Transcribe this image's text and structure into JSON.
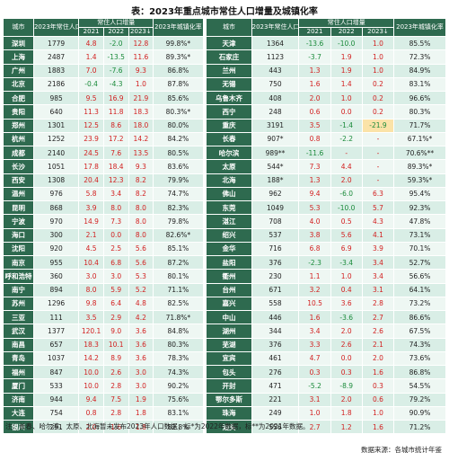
{
  "title": "表：2023年重点城市常住人口增量及城镇化率",
  "headers": {
    "city": "城市",
    "pop": "2023年常住人口（万人）",
    "inc": "常住人口增量",
    "y2021": "2021",
    "y2022": "2022",
    "y2023": "2023↓",
    "urban": "2023年城镇化率"
  },
  "left_rows": [
    {
      "city": "深圳",
      "pop": "1779",
      "a": "4.8",
      "b": "-2.0",
      "c": "12.8",
      "u": "99.8%*"
    },
    {
      "city": "上海",
      "pop": "2487",
      "a": "1.4",
      "b": "-13.5",
      "c": "11.6",
      "u": "89.3%*"
    },
    {
      "city": "广州",
      "pop": "1883",
      "a": "7.0",
      "b": "-7.6",
      "c": "9.3",
      "u": "86.8%"
    },
    {
      "city": "北京",
      "pop": "2186",
      "a": "-0.4",
      "b": "-4.3",
      "c": "1.0",
      "u": "87.8%"
    },
    {
      "city": "合肥",
      "pop": "985",
      "a": "9.5",
      "b": "16.9",
      "c": "21.9",
      "u": "85.6%"
    },
    {
      "city": "贵阳",
      "pop": "640",
      "a": "11.3",
      "b": "11.8",
      "c": "18.3",
      "u": "80.3%*"
    },
    {
      "city": "郑州",
      "pop": "1301",
      "a": "12.5",
      "b": "8.6",
      "c": "18.0",
      "u": "80.0%"
    },
    {
      "city": "杭州",
      "pop": "1252",
      "a": "23.9",
      "b": "17.2",
      "c": "14.2",
      "u": "84.2%"
    },
    {
      "city": "成都",
      "pop": "2140",
      "a": "24.5",
      "b": "7.6",
      "c": "13.5",
      "u": "80.5%"
    },
    {
      "city": "长沙",
      "pop": "1051",
      "a": "17.8",
      "b": "18.4",
      "c": "9.3",
      "u": "83.6%"
    },
    {
      "city": "西安",
      "pop": "1308",
      "a": "20.4",
      "b": "12.3",
      "c": "8.2",
      "u": "79.9%"
    },
    {
      "city": "温州",
      "pop": "976",
      "a": "5.8",
      "b": "3.4",
      "c": "8.2",
      "u": "74.7%"
    },
    {
      "city": "昆明",
      "pop": "868",
      "a": "3.9",
      "b": "8.0",
      "c": "8.0",
      "u": "82.3%"
    },
    {
      "city": "宁波",
      "pop": "970",
      "a": "14.9",
      "b": "7.3",
      "c": "8.0",
      "u": "79.8%"
    },
    {
      "city": "海口",
      "pop": "300",
      "a": "2.1",
      "b": "0.0",
      "c": "8.0",
      "u": "82.6%*"
    },
    {
      "city": "沈阳",
      "pop": "920",
      "a": "4.5",
      "b": "2.5",
      "c": "5.6",
      "u": "85.1%"
    },
    {
      "city": "南京",
      "pop": "955",
      "a": "10.4",
      "b": "6.8",
      "c": "5.6",
      "u": "87.2%"
    },
    {
      "city": "呼和浩特",
      "pop": "360",
      "a": "3.0",
      "b": "3.0",
      "c": "5.3",
      "u": "80.1%"
    },
    {
      "city": "南宁",
      "pop": "894",
      "a": "8.0",
      "b": "5.9",
      "c": "5.2",
      "u": "71.1%"
    },
    {
      "city": "苏州",
      "pop": "1296",
      "a": "9.8",
      "b": "6.4",
      "c": "4.8",
      "u": "82.5%"
    },
    {
      "city": "三亚",
      "pop": "111",
      "a": "3.5",
      "b": "2.9",
      "c": "4.2",
      "u": "71.8%*"
    },
    {
      "city": "武汉",
      "pop": "1377",
      "a": "120.1",
      "b": "9.0",
      "c": "3.6",
      "u": "84.8%"
    },
    {
      "city": "南昌",
      "pop": "657",
      "a": "18.3",
      "b": "10.1",
      "c": "3.6",
      "u": "80.3%"
    },
    {
      "city": "青岛",
      "pop": "1037",
      "a": "14.2",
      "b": "8.9",
      "c": "3.6",
      "u": "78.3%"
    },
    {
      "city": "福州",
      "pop": "847",
      "a": "10.0",
      "b": "2.6",
      "c": "3.0",
      "u": "74.3%"
    },
    {
      "city": "厦门",
      "pop": "533",
      "a": "10.0",
      "b": "2.8",
      "c": "3.0",
      "u": "90.2%"
    },
    {
      "city": "济南",
      "pop": "944",
      "a": "9.4",
      "b": "7.5",
      "c": "1.9",
      "u": "75.6%"
    },
    {
      "city": "大连",
      "pop": "754",
      "a": "0.8",
      "b": "2.8",
      "c": "1.8",
      "u": "83.1%"
    },
    {
      "city": "银川",
      "pop": "291",
      "a": "2.0",
      "b": "1.6",
      "c": "1.8",
      "u": "82.8%"
    }
  ],
  "right_rows": [
    {
      "city": "天津",
      "pop": "1364",
      "a": "-13.6",
      "b": "-10.0",
      "c": "1.0",
      "u": "85.5%"
    },
    {
      "city": "石家庄",
      "pop": "1123",
      "a": "-3.7",
      "b": "1.9",
      "c": "1.0",
      "u": "72.3%"
    },
    {
      "city": "兰州",
      "pop": "443",
      "a": "1.3",
      "b": "1.9",
      "c": "1.0",
      "u": "84.9%"
    },
    {
      "city": "无锡",
      "pop": "750",
      "a": "1.6",
      "b": "1.4",
      "c": "0.2",
      "u": "83.1%"
    },
    {
      "city": "乌鲁木齐",
      "pop": "408",
      "a": "2.0",
      "b": "1.0",
      "c": "0.2",
      "u": "96.6%"
    },
    {
      "city": "西宁",
      "pop": "248",
      "a": "0.6",
      "b": "0.0",
      "c": "0.2",
      "u": "80.3%"
    },
    {
      "city": "重庆",
      "pop": "3191",
      "a": "3.5",
      "b": "-1.4",
      "c": "-21.9",
      "u": "71.7%"
    },
    {
      "city": "长春",
      "pop": "907*",
      "a": "0.8",
      "b": "-2.2",
      "c": "-",
      "u": "67.1%*"
    },
    {
      "city": "哈尔滨",
      "pop": "989**",
      "a": "-11.6",
      "c": "-",
      "b": "-",
      "u": "70.6%**"
    },
    {
      "city": "太原",
      "pop": "544*",
      "a": "7.3",
      "b": "4.4",
      "c": "-",
      "u": "89.3%*"
    },
    {
      "city": "北海",
      "pop": "188*",
      "a": "1.3",
      "b": "2.0",
      "c": "-",
      "u": "59.3%*"
    },
    {
      "city": "佛山",
      "pop": "962",
      "a": "9.4",
      "b": "-6.0",
      "c": "6.3",
      "u": "95.4%"
    },
    {
      "city": "东莞",
      "pop": "1049",
      "a": "5.3",
      "b": "-10.0",
      "c": "5.7",
      "u": "92.3%"
    },
    {
      "city": "湛江",
      "pop": "708",
      "a": "4.0",
      "b": "0.5",
      "c": "4.3",
      "u": "47.8%"
    },
    {
      "city": "绍兴",
      "pop": "537",
      "a": "3.8",
      "b": "5.6",
      "c": "4.1",
      "u": "73.1%"
    },
    {
      "city": "金华",
      "pop": "716",
      "a": "6.8",
      "b": "6.9",
      "c": "3.9",
      "u": "70.1%"
    },
    {
      "city": "盐阳",
      "pop": "376",
      "a": "-2.3",
      "b": "-3.4",
      "c": "3.4",
      "u": "52.7%"
    },
    {
      "city": "衢州",
      "pop": "230",
      "a": "1.1",
      "b": "1.0",
      "c": "3.4",
      "u": "56.6%"
    },
    {
      "city": "台州",
      "pop": "671",
      "a": "3.2",
      "b": "0.4",
      "c": "3.1",
      "u": "64.1%"
    },
    {
      "city": "嘉兴",
      "pop": "558",
      "a": "10.5",
      "b": "3.6",
      "c": "2.8",
      "u": "73.2%"
    },
    {
      "city": "中山",
      "pop": "446",
      "a": "1.6",
      "b": "-3.6",
      "c": "2.7",
      "u": "86.6%"
    },
    {
      "city": "湖州",
      "pop": "344",
      "a": "3.4",
      "b": "2.0",
      "c": "2.6",
      "u": "67.5%"
    },
    {
      "city": "芜湖",
      "pop": "376",
      "a": "3.3",
      "b": "2.6",
      "c": "2.1",
      "u": "74.3%"
    },
    {
      "city": "宜宾",
      "pop": "461",
      "a": "4.7",
      "b": "0.0",
      "c": "2.0",
      "u": "73.6%"
    },
    {
      "city": "包头",
      "pop": "276",
      "a": "0.3",
      "b": "0.3",
      "c": "1.6",
      "u": "86.8%"
    },
    {
      "city": "开封",
      "pop": "471",
      "a": "-5.2",
      "b": "-8.9",
      "c": "0.3",
      "u": "54.5%"
    },
    {
      "city": "鄂尔多斯",
      "pop": "221",
      "a": "3.1",
      "b": "2.0",
      "c": "0.6",
      "u": "79.2%"
    },
    {
      "city": "珠海",
      "pop": "249",
      "a": "1.0",
      "b": "1.8",
      "c": "1.0",
      "u": "90.9%"
    },
    {
      "city": "汕头",
      "pop": "556",
      "a": "2.7",
      "b": "1.2",
      "c": "1.6",
      "u": "71.2%"
    }
  ],
  "note": "注：长春、哈尔滨、太原、北海暂未发布2023年人口数据；标*为2022年数据，标**为2021年数据。",
  "source": "数据来源：各城市统计年鉴"
}
